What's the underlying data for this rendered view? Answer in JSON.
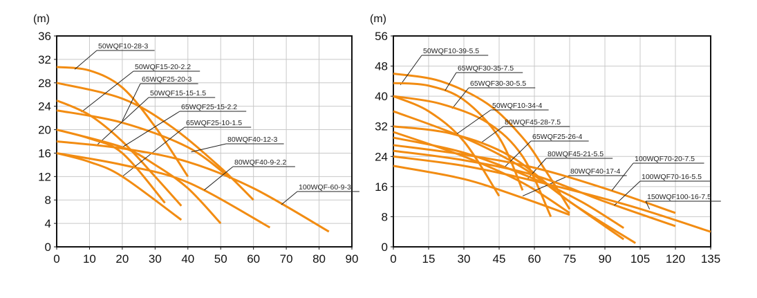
{
  "chart_data": [
    {
      "type": "line",
      "unit_label": "(m)",
      "xlim": [
        0,
        90
      ],
      "ylim": [
        0,
        36
      ],
      "xticks": [
        0,
        10,
        20,
        30,
        40,
        50,
        60,
        70,
        80,
        90
      ],
      "yticks": [
        0,
        4,
        8,
        12,
        16,
        20,
        24,
        28,
        32,
        36
      ],
      "grid": true,
      "color": "#F28C12",
      "series": [
        {
          "name": "50WQF10-28-3",
          "points": [
            [
              0,
              30.7
            ],
            [
              10,
              30.1
            ],
            [
              20,
              27.2
            ],
            [
              30,
              20.5
            ],
            [
              40,
              12
            ]
          ]
        },
        {
          "name": "50WQF15-20-2.2",
          "points": [
            [
              0,
              28
            ],
            [
              20,
              25.3
            ],
            [
              35,
              20.5
            ],
            [
              50,
              13.5
            ],
            [
              60,
              8
            ]
          ]
        },
        {
          "name": "65WQF25-20-3",
          "points": [
            [
              0,
              25
            ],
            [
              10,
              22.5
            ],
            [
              20,
              18
            ],
            [
              30,
              12
            ],
            [
              38,
              7
            ]
          ]
        },
        {
          "name": "50WQF15-15-1.5",
          "points": [
            [
              0,
              23.3
            ],
            [
              20,
              21.2
            ],
            [
              40,
              17
            ],
            [
              53,
              11.7
            ]
          ]
        },
        {
          "name": "65WQF25-15-2.2",
          "points": [
            [
              0,
              20
            ],
            [
              10,
              18.5
            ],
            [
              20,
              16
            ],
            [
              33,
              7.5
            ]
          ]
        },
        {
          "name": "65WQF25-10-1.5",
          "points": [
            [
              0,
              20
            ],
            [
              20,
              17
            ],
            [
              30,
              14
            ],
            [
              40,
              10
            ],
            [
              50,
              4
            ]
          ]
        },
        {
          "name": "80WQF40-12-3",
          "points": [
            [
              0,
              18
            ],
            [
              20,
              16.8
            ],
            [
              40,
              14.5
            ],
            [
              60,
              10
            ],
            [
              83,
              2.6
            ]
          ]
        },
        {
          "name": "80WQF40-9-2.2",
          "points": [
            [
              0,
              16
            ],
            [
              20,
              14
            ],
            [
              40,
              11
            ],
            [
              65,
              3.3
            ]
          ]
        },
        {
          "name": "100WQF-60-9-3",
          "points": [
            [
              0,
              16
            ],
            [
              10,
              14.5
            ],
            [
              20,
              12
            ],
            [
              38,
              4.6
            ]
          ]
        }
      ]
    },
    {
      "type": "line",
      "unit_label": "(m)",
      "xlim": [
        0,
        135
      ],
      "ylim": [
        0,
        56
      ],
      "xticks": [
        0,
        15,
        30,
        45,
        60,
        75,
        90,
        105,
        120,
        135
      ],
      "yticks": [
        0,
        8,
        16,
        24,
        32,
        40,
        48,
        56
      ],
      "grid": true,
      "color": "#F28C12",
      "series": [
        {
          "name": "50WQF10-39-5.5",
          "points": [
            [
              0,
              46
            ],
            [
              20,
              44
            ],
            [
              40,
              38
            ],
            [
              55,
              29
            ],
            [
              65,
              20
            ],
            [
              75,
              10
            ]
          ]
        },
        {
          "name": "65WQF30-35-7.5",
          "points": [
            [
              0,
              43.5
            ],
            [
              15,
              42.8
            ],
            [
              30,
              39
            ],
            [
              45,
              29
            ],
            [
              55,
              15
            ]
          ]
        },
        {
          "name": "65WQF30-30-5.5",
          "points": [
            [
              0,
              40
            ],
            [
              15,
              36
            ],
            [
              30,
              28
            ],
            [
              45,
              13.5
            ]
          ]
        },
        {
          "name": "50WQF10-34-4",
          "points": [
            [
              0,
              40
            ],
            [
              20,
              38
            ],
            [
              40,
              33
            ],
            [
              55,
              24
            ],
            [
              67,
              8
            ]
          ]
        },
        {
          "name": "80WQF45-28-7.5",
          "points": [
            [
              0,
              36
            ],
            [
              30,
              29
            ],
            [
              55,
              21
            ],
            [
              75,
              12
            ],
            [
              98,
              2
            ]
          ]
        },
        {
          "name": "65WQF25-26-4",
          "points": [
            [
              0,
              32
            ],
            [
              25,
              30
            ],
            [
              50,
              24
            ],
            [
              75,
              12
            ],
            [
              103,
              1
            ]
          ]
        },
        {
          "name": "80WQF45-21-5.5",
          "points": [
            [
              0,
              30.5
            ],
            [
              30,
              24
            ],
            [
              55,
              17
            ],
            [
              75,
              9
            ]
          ]
        },
        {
          "name": "80WQF40-17-4",
          "points": [
            [
              0,
              29
            ],
            [
              30,
              25
            ],
            [
              60,
              18
            ],
            [
              80,
              12
            ],
            [
              98,
              5
            ]
          ]
        },
        {
          "name": "100WQF70-20-7.5",
          "points": [
            [
              0,
              27
            ],
            [
              30,
              24.5
            ],
            [
              60,
              21
            ],
            [
              90,
              15.5
            ],
            [
              120,
              9
            ]
          ]
        },
        {
          "name": "100WQF70-16-5.5",
          "points": [
            [
              0,
              25.5
            ],
            [
              30,
              23
            ],
            [
              60,
              19
            ],
            [
              90,
              12
            ],
            [
              120,
              5.5
            ]
          ]
        },
        {
          "name": "150WQF100-16-7.5",
          "points": [
            [
              0,
              24
            ],
            [
              30,
              21.5
            ],
            [
              60,
              17.5
            ],
            [
              100,
              11
            ],
            [
              135,
              4
            ]
          ]
        },
        {
          "name": "",
          "points": [
            [
              0,
              21.5
            ],
            [
              30,
              18
            ],
            [
              55,
              13
            ],
            [
              75,
              8.5
            ]
          ]
        }
      ]
    }
  ]
}
